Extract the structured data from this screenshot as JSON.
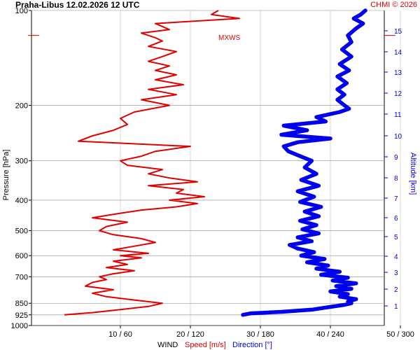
{
  "header": {
    "title": "Praha-Libus    12.02.2026 12 UTC",
    "credit": "CHMI © 2026"
  },
  "chart_data": {
    "type": "line",
    "title": "Praha-Libus    12.02.2026 12 UTC",
    "y_axis_left": {
      "label": "Pressure [hPa]",
      "scale": "log",
      "range": [
        1000,
        100
      ],
      "ticks": [
        "100",
        "200",
        "300",
        "400",
        "500",
        "600",
        "700",
        "850",
        "925",
        "1000"
      ]
    },
    "y_axis_right": {
      "label": "Altitude [km]",
      "ticks": [
        "1",
        "2",
        "3",
        "4",
        "5",
        "6",
        "7",
        "8",
        "9",
        "10",
        "11",
        "12",
        "13",
        "14",
        "15"
      ]
    },
    "x_axis": {
      "label_prefix": "WIND",
      "label_speed": "Speed [m/s]",
      "label_direction": "Direction [°]",
      "ticks": [
        "10 / 60",
        "20 / 120",
        "30 / 180",
        "40 / 240",
        "50 / 300"
      ]
    },
    "annotation": "MXWS",
    "colors": {
      "speed": "#e00000",
      "direction": "#0000ee",
      "grid": "#bfbfbf"
    },
    "grid": true,
    "series": [
      {
        "name": "Speed [m/s]",
        "pressure": [
          925,
          910,
          890,
          870,
          850,
          830,
          810,
          790,
          770,
          750,
          730,
          715,
          700,
          685,
          670,
          655,
          640,
          625,
          610,
          600,
          590,
          575,
          560,
          545,
          530,
          515,
          500,
          485,
          470,
          455,
          440,
          430,
          420,
          410,
          400,
          390,
          380,
          370,
          360,
          350,
          340,
          330,
          320,
          310,
          300,
          290,
          280,
          270,
          260,
          250,
          240,
          230,
          220,
          210,
          200,
          192,
          185,
          178,
          172,
          166,
          160,
          155,
          150,
          145,
          140,
          135,
          130,
          125,
          122,
          118,
          115,
          110,
          106,
          103,
          100
        ],
        "values": [
          2,
          6,
          10,
          14,
          16,
          12,
          8,
          6,
          9,
          5,
          6,
          8,
          7,
          9,
          12,
          8,
          11,
          9,
          13,
          10,
          14,
          9,
          12,
          15,
          13,
          9,
          7,
          8,
          11,
          6,
          10,
          13,
          18,
          21,
          17,
          22,
          18,
          19,
          14,
          21,
          17,
          14,
          16,
          11,
          10,
          13,
          15,
          20,
          4,
          6,
          9,
          11,
          10,
          12,
          17,
          13,
          18,
          14,
          19,
          15,
          18,
          15,
          17,
          14,
          16,
          18,
          14,
          16,
          15,
          13,
          17,
          15,
          27,
          23,
          24
        ]
      },
      {
        "name": "Direction [°]",
        "pressure": [
          925,
          915,
          905,
          890,
          875,
          860,
          850,
          840,
          825,
          810,
          795,
          780,
          765,
          750,
          735,
          720,
          705,
          690,
          675,
          660,
          645,
          630,
          615,
          600,
          585,
          570,
          555,
          540,
          525,
          510,
          495,
          480,
          465,
          450,
          435,
          420,
          405,
          390,
          375,
          360,
          345,
          330,
          315,
          300,
          290,
          280,
          270,
          262,
          255,
          248,
          240,
          232,
          225,
          218,
          210,
          205,
          200,
          192,
          185,
          178,
          170,
          162,
          155,
          148,
          140,
          133,
          126,
          120,
          114,
          110,
          106,
          103,
          100
        ],
        "values": [
          165,
          172,
          198,
          225,
          238,
          252,
          258,
          255,
          262,
          248,
          255,
          240,
          258,
          245,
          262,
          242,
          255,
          232,
          248,
          228,
          238,
          220,
          235,
          215,
          226,
          212,
          205,
          224,
          212,
          230,
          216,
          228,
          214,
          230,
          218,
          232,
          214,
          226,
          212,
          230,
          215,
          228,
          218,
          224,
          214,
          204,
          200,
          212,
          240,
          198,
          220,
          200,
          236,
          228,
          248,
          256,
          252,
          246,
          252,
          246,
          254,
          246,
          256,
          248,
          258,
          250,
          258,
          255,
          262,
          268,
          260,
          266,
          270
        ]
      }
    ]
  }
}
